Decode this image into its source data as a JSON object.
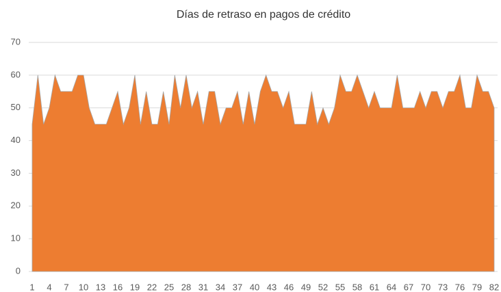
{
  "chart_data": {
    "type": "area",
    "title": "Días de retraso en pagos de crédito",
    "categories": [
      1,
      null,
      null,
      4,
      null,
      null,
      7,
      null,
      null,
      10,
      null,
      null,
      13,
      null,
      null,
      16,
      null,
      null,
      19,
      null,
      null,
      22,
      null,
      null,
      25,
      null,
      null,
      28,
      null,
      null,
      31,
      null,
      null,
      34,
      null,
      null,
      37,
      null,
      null,
      40,
      null,
      null,
      43,
      null,
      null,
      46,
      null,
      null,
      49,
      null,
      null,
      52,
      null,
      null,
      55,
      null,
      null,
      58,
      null,
      null,
      61,
      null,
      null,
      64,
      null,
      null,
      67,
      null,
      null,
      70,
      null,
      null,
      73,
      null,
      null,
      76,
      null,
      null,
      79,
      null,
      null,
      82
    ],
    "values": [
      45,
      60,
      45,
      50,
      60,
      55,
      55,
      55,
      60,
      60,
      50,
      45,
      45,
      45,
      50,
      55,
      45,
      50,
      60,
      45,
      55,
      45,
      45,
      55,
      45,
      60,
      50,
      60,
      50,
      55,
      45,
      55,
      55,
      45,
      50,
      50,
      55,
      45,
      55,
      45,
      55,
      60,
      55,
      55,
      50,
      55,
      45,
      45,
      45,
      55,
      45,
      50,
      45,
      50,
      60,
      55,
      55,
      60,
      55,
      50,
      55,
      50,
      50,
      50,
      60,
      50,
      50,
      50,
      55,
      50,
      55,
      55,
      50,
      55,
      55,
      60,
      50,
      50,
      60,
      55,
      55,
      50
    ],
    "color": "#ed7d31",
    "ylim": [
      0,
      70
    ],
    "yticks": [
      0,
      10,
      20,
      30,
      40,
      50,
      60,
      70
    ],
    "grid": true
  }
}
